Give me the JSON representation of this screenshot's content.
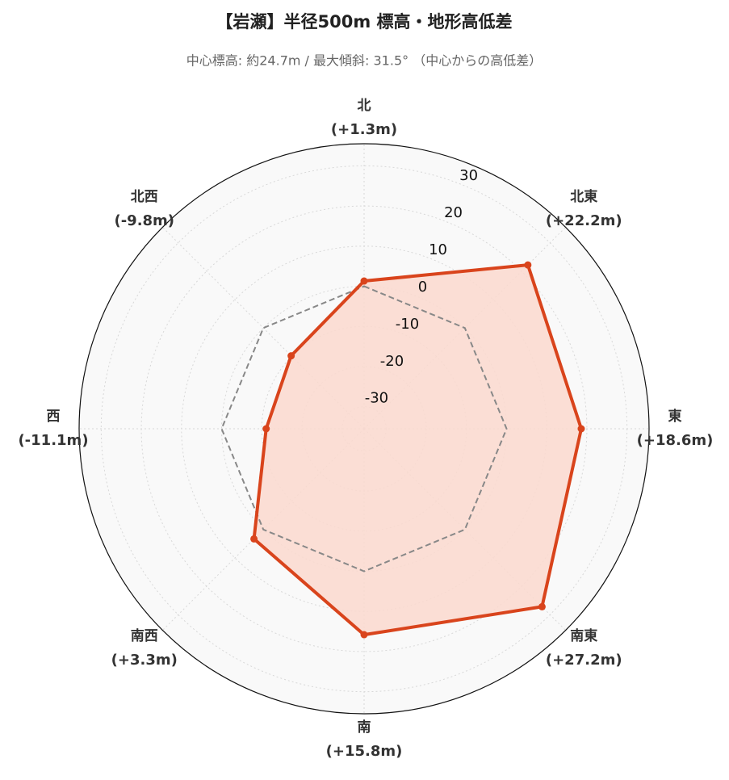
{
  "chart_data": {
    "type": "radar",
    "title": "【岩瀬】半径500m 標高・地形高低差",
    "subtitle": "中心標高: 約24.7m / 最大傾斜: 31.5° （中心からの高低差）",
    "categories": [
      "北",
      "北東",
      "東",
      "南東",
      "南",
      "南西",
      "西",
      "北西"
    ],
    "values": [
      1.3,
      22.2,
      18.6,
      27.2,
      15.8,
      3.3,
      -11.1,
      -9.8
    ],
    "value_labels": [
      "(+1.3m)",
      "(+22.2m)",
      "(+18.6m)",
      "(+27.2m)",
      "(+15.8m)",
      "(+3.3m)",
      "(-11.1m)",
      "(-9.8m)"
    ],
    "color": "#d9441c",
    "fill": "#fbd9cf",
    "ylim": [
      -35.5,
      35.5
    ],
    "yticks": [
      -30,
      -20,
      -10,
      0,
      10,
      20,
      30
    ],
    "reference_line": 0,
    "grid": true
  }
}
